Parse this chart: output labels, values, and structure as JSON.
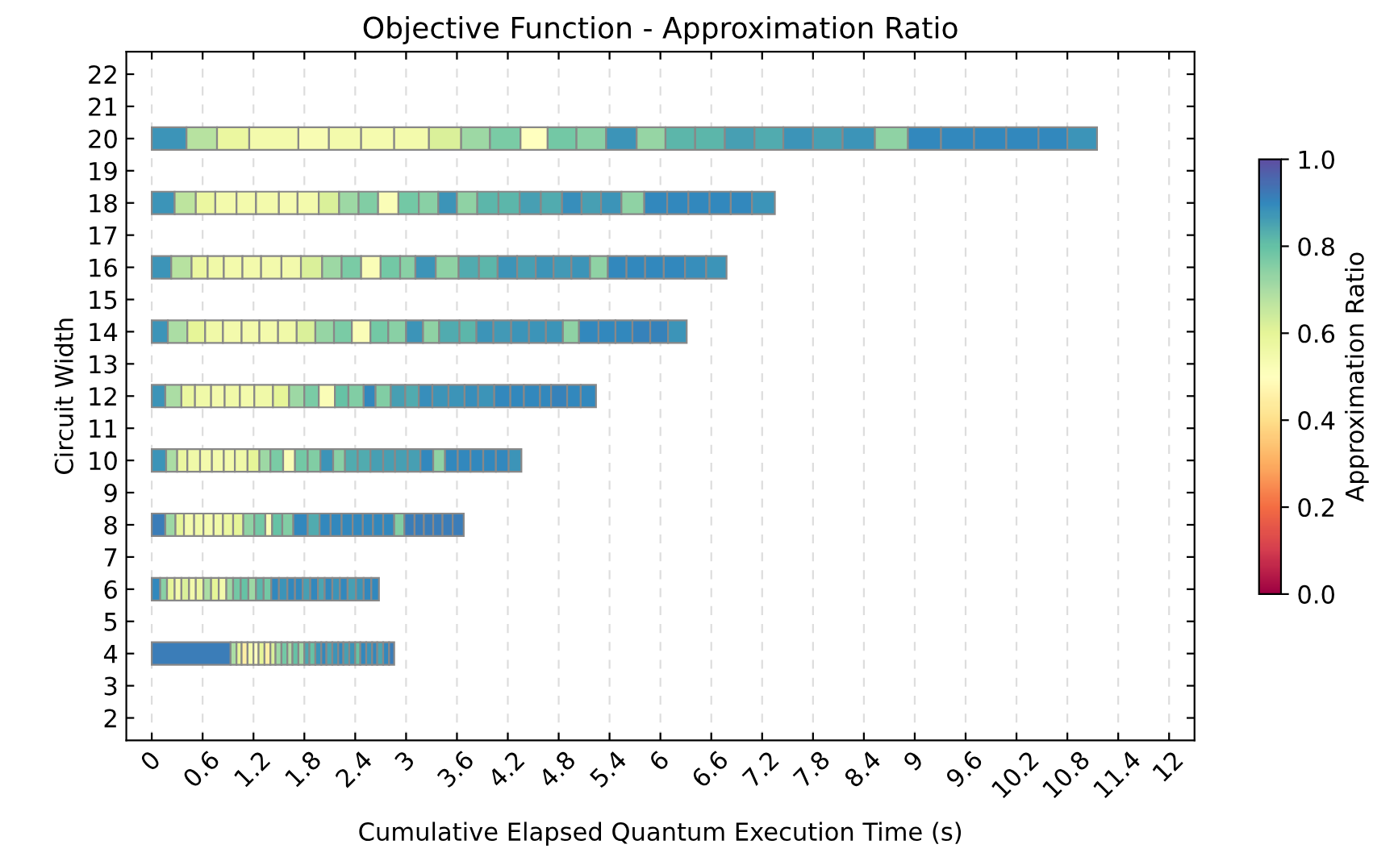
{
  "chart_data": {
    "type": "bar",
    "orientation": "horizontal",
    "stacked": true,
    "title": "Objective Function - Approximation Ratio",
    "xlabel": "Cumulative Elapsed Quantum Execution Time (s)",
    "ylabel": "Circuit Width",
    "clabel": "Approximation Ratio",
    "categories": [
      "22",
      "21",
      "20",
      "19",
      "18",
      "17",
      "16",
      "15",
      "14",
      "13",
      "12",
      "11",
      "10",
      "9",
      "8",
      "7",
      "6",
      "5",
      "4",
      "3",
      "2"
    ],
    "xlim": [
      -0.3,
      12.3
    ],
    "xticks": [
      0,
      0.6,
      1.2,
      1.8,
      2.4,
      3,
      3.6,
      4.2,
      4.8,
      5.4,
      6,
      6.6,
      7.2,
      7.8,
      8.4,
      9,
      9.6,
      10.2,
      10.8,
      11.4,
      12
    ],
    "clim": [
      0,
      1
    ],
    "cticks": [
      {
        "value": 0,
        "label": "0.0"
      },
      0.2,
      0.4,
      0.6,
      0.8,
      {
        "value": 1,
        "label": "1.0"
      }
    ],
    "grid": "x",
    "legend": false,
    "series": [
      {
        "values": [
          null,
          null,
          0.41,
          null,
          0.27,
          null,
          0.23,
          null,
          0.19,
          null,
          0.16,
          null,
          0.17,
          null,
          0.16,
          null,
          0.1,
          null,
          0.93,
          null,
          null
        ],
        "colors": [
          null,
          null,
          "#3c94b8",
          null,
          "#3c94b8",
          null,
          "#3c94b8",
          null,
          "#3c94b8",
          null,
          "#3c94b8",
          null,
          "#3c94b8",
          null,
          "#3b7db8",
          null,
          "#3288bd",
          null,
          "#3b7db8",
          null,
          null
        ]
      },
      {
        "values": [
          null,
          null,
          0.36,
          null,
          0.25,
          null,
          0.24,
          null,
          0.23,
          null,
          0.19,
          null,
          0.13,
          null,
          0.12,
          null,
          0.08,
          null,
          0.07,
          null,
          null
        ],
        "colors": [
          null,
          null,
          "#b7e2a0",
          null,
          "#bde49e",
          null,
          "#b7e2a0",
          null,
          "#abdda4",
          null,
          "#abdda4",
          null,
          "#abdda4",
          null,
          "#9dd8a4",
          null,
          "#89d0a5",
          null,
          "#abdda4",
          null,
          null
        ]
      },
      {
        "values": [
          null,
          null,
          0.38,
          null,
          0.23,
          null,
          0.19,
          null,
          0.21,
          null,
          0.16,
          null,
          0.12,
          null,
          0.1,
          null,
          0.09,
          null,
          0.06,
          null,
          null
        ],
        "colors": [
          null,
          null,
          "#ebf7a0",
          null,
          "#ebf7a0",
          null,
          "#ebf7a0",
          null,
          "#e6f598",
          null,
          "#ebf7a0",
          null,
          "#ebf7a0",
          null,
          "#e6f598",
          null,
          "#e6f598",
          null,
          "#e6f598",
          null,
          null
        ]
      },
      {
        "values": [
          null,
          null,
          0.58,
          null,
          0.25,
          null,
          0.19,
          null,
          0.21,
          null,
          0.19,
          null,
          0.15,
          null,
          0.12,
          null,
          0.08,
          null,
          0.07,
          null,
          null
        ],
        "colors": [
          null,
          null,
          "#f3faac",
          null,
          "#f3faac",
          null,
          "#f0f9a8",
          null,
          "#f0f9a8",
          null,
          "#f0f9a8",
          null,
          "#f0f9a8",
          null,
          "#f3faac",
          null,
          "#f3faac",
          null,
          "#feefa5",
          null,
          null
        ]
      },
      {
        "values": [
          null,
          null,
          0.36,
          null,
          0.23,
          null,
          0.22,
          null,
          0.22,
          null,
          0.16,
          null,
          0.14,
          null,
          0.11,
          null,
          0.09,
          null,
          0.07,
          null,
          null
        ],
        "colors": [
          null,
          null,
          "#f8fcb3",
          null,
          "#f3faac",
          null,
          "#f3faac",
          null,
          "#f3faac",
          null,
          "#f3faac",
          null,
          "#f3faac",
          null,
          "#f0f9a8",
          null,
          "#daf09a",
          null,
          "#f3faac",
          null,
          null
        ]
      },
      {
        "values": [
          null,
          null,
          0.38,
          null,
          0.27,
          null,
          0.22,
          null,
          0.21,
          null,
          0.18,
          null,
          0.14,
          null,
          0.12,
          null,
          0.08,
          null,
          0.06,
          null,
          null
        ],
        "colors": [
          null,
          null,
          "#f3faac",
          null,
          "#f3faac",
          null,
          "#f3faac",
          null,
          "#f3faac",
          null,
          "#f0f9a8",
          null,
          "#f3faac",
          null,
          "#f3faac",
          null,
          "#f3faac",
          null,
          "#ffffbf",
          null,
          null
        ]
      },
      {
        "values": [
          null,
          null,
          0.39,
          null,
          0.22,
          null,
          0.24,
          null,
          0.22,
          null,
          0.17,
          null,
          0.13,
          null,
          0.11,
          null,
          0.09,
          null,
          0.07,
          null,
          null
        ],
        "colors": [
          null,
          null,
          "#f5fbaf",
          null,
          "#f5fbaf",
          null,
          "#f3faac",
          null,
          "#f3faac",
          null,
          "#f3faac",
          null,
          "#f3faac",
          null,
          "#f0f9a8",
          null,
          "#ebf7a0",
          null,
          "#e6f598",
          null,
          null
        ]
      },
      {
        "values": [
          null,
          null,
          0.41,
          null,
          0.25,
          null,
          0.23,
          null,
          0.22,
          null,
          0.22,
          null,
          0.15,
          null,
          0.12,
          null,
          0.09,
          null,
          0.07,
          null,
          null
        ],
        "colors": [
          null,
          null,
          "#f3faac",
          null,
          "#f3faac",
          null,
          "#f3faac",
          null,
          "#f0f9a8",
          null,
          "#f0f9a8",
          null,
          "#f0f9a8",
          null,
          "#ebf7a0",
          null,
          "#abdda4",
          null,
          "#feefa5",
          null,
          null
        ]
      },
      {
        "values": [
          null,
          null,
          0.38,
          null,
          0.24,
          null,
          0.25,
          null,
          0.22,
          null,
          0.19,
          null,
          0.14,
          null,
          0.12,
          null,
          0.09,
          null,
          0.06,
          null,
          null
        ],
        "colors": [
          null,
          null,
          "#daf09a",
          null,
          "#daf09a",
          null,
          "#daf09a",
          null,
          "#daf09a",
          null,
          "#e6f598",
          null,
          "#e6f598",
          null,
          "#e6f598",
          null,
          "#e6f598",
          null,
          "#daf09a",
          null,
          null
        ]
      },
      {
        "values": [
          null,
          null,
          0.34,
          null,
          0.23,
          null,
          0.23,
          null,
          0.22,
          null,
          0.18,
          null,
          0.13,
          null,
          0.13,
          null,
          0.09,
          null,
          0.07,
          null,
          null
        ],
        "colors": [
          null,
          null,
          "#9dd8a4",
          null,
          "#9dd8a4",
          null,
          "#9dd8a4",
          null,
          "#96d5a4",
          null,
          "#9dd8a4",
          null,
          "#9dd8a4",
          null,
          "#8fd2a4",
          null,
          "#f3faac",
          null,
          "#9dd8a4",
          null,
          null
        ]
      },
      {
        "values": [
          null,
          null,
          0.36,
          null,
          0.23,
          null,
          0.23,
          null,
          0.21,
          null,
          0.17,
          null,
          0.15,
          null,
          0.13,
          null,
          0.08,
          null,
          0.07,
          null,
          null
        ],
        "colors": [
          null,
          null,
          "#7acba5",
          null,
          "#81cda4",
          null,
          "#7acba5",
          null,
          "#7acba5",
          null,
          "#7acba5",
          null,
          "#7acba5",
          null,
          "#73c8a5",
          null,
          "#9dd8a4",
          null,
          "#73c8a5",
          null,
          null
        ]
      },
      {
        "values": [
          null,
          null,
          0.32,
          null,
          0.24,
          null,
          0.23,
          null,
          0.22,
          null,
          0.19,
          null,
          0.14,
          null,
          0.08,
          null,
          0.09,
          null,
          0.06,
          null,
          null
        ],
        "colors": [
          null,
          null,
          "#ffffbf",
          null,
          "#fafdb7",
          null,
          "#fafdb7",
          null,
          "#fafdb7",
          null,
          "#fafdb7",
          null,
          "#fafdb7",
          null,
          "#fafdb7",
          null,
          "#73c8a5",
          null,
          "#abdda4",
          null,
          null
        ]
      },
      {
        "values": [
          null,
          null,
          0.34,
          null,
          0.24,
          null,
          0.23,
          null,
          0.21,
          null,
          0.16,
          null,
          0.15,
          null,
          0.12,
          null,
          0.09,
          null,
          0.07,
          null,
          null
        ],
        "colors": [
          null,
          null,
          "#73c8a5",
          null,
          "#73c8a5",
          null,
          "#73c8a5",
          null,
          "#73c8a5",
          null,
          "#66c2a5",
          null,
          "#73c8a5",
          null,
          "#66c2a5",
          null,
          "#66c2a5",
          null,
          "#66c2a5",
          null,
          null
        ]
      },
      {
        "values": [
          null,
          null,
          0.35,
          null,
          0.23,
          null,
          0.18,
          null,
          0.21,
          null,
          0.18,
          null,
          0.15,
          null,
          0.13,
          null,
          0.09,
          null,
          0.07,
          null,
          null
        ],
        "colors": [
          null,
          null,
          "#89d0a5",
          null,
          "#89d0a5",
          null,
          "#89d0a5",
          null,
          "#89d0a5",
          null,
          "#81cda4",
          null,
          "#81cda4",
          null,
          "#81cda4",
          null,
          "#9dd8a4",
          null,
          "#9dd8a4",
          null,
          null
        ]
      },
      {
        "values": [
          null,
          null,
          0.36,
          null,
          0.22,
          null,
          0.24,
          null,
          0.2,
          null,
          0.14,
          null,
          0.15,
          null,
          0.17,
          null,
          0.09,
          null,
          0.06,
          null,
          null
        ],
        "colors": [
          null,
          null,
          "#3c94b8",
          null,
          "#3c94b8",
          null,
          "#3c94b8",
          null,
          "#3c94b8",
          null,
          "#3288bd",
          null,
          "#3c94b8",
          null,
          "#3288bd",
          null,
          "#5cb6aa",
          null,
          "#4ca5b1",
          null,
          null
        ]
      },
      {
        "values": [
          null,
          null,
          0.34,
          null,
          0.24,
          null,
          0.27,
          null,
          0.19,
          null,
          0.18,
          null,
          0.14,
          null,
          0.14,
          null,
          0.09,
          null,
          0.07,
          null,
          null
        ],
        "colors": [
          null,
          null,
          "#96d5a4",
          null,
          "#8fd2a4",
          null,
          "#8fd2a4",
          null,
          "#8fd2a4",
          null,
          "#81cda4",
          null,
          "#89d0a5",
          null,
          "#51abaf",
          null,
          "#73c8a5",
          null,
          "#66c2a5",
          null,
          null
        ]
      },
      {
        "values": [
          null,
          null,
          0.35,
          null,
          0.25,
          null,
          0.24,
          null,
          0.24,
          null,
          0.17,
          null,
          0.15,
          null,
          0.13,
          null,
          0.09,
          null,
          0.07,
          null,
          null
        ],
        "colors": [
          null,
          null,
          "#5cb6aa",
          null,
          "#5cb6aa",
          null,
          "#51abaf",
          null,
          "#51abaf",
          null,
          "#479fb3",
          null,
          "#51abaf",
          null,
          "#3288bd",
          null,
          "#3288bd",
          null,
          "#3c94b8",
          null,
          null
        ]
      },
      {
        "values": [
          null,
          null,
          0.35,
          null,
          0.25,
          null,
          0.22,
          null,
          0.2,
          null,
          0.16,
          null,
          0.15,
          null,
          0.13,
          null,
          0.1,
          null,
          0.06,
          null,
          null
        ],
        "colors": [
          null,
          null,
          "#5cb6aa",
          null,
          "#5cb6aa",
          null,
          "#5cb6aa",
          null,
          "#5cb6aa",
          null,
          "#51abaf",
          null,
          "#51abaf",
          null,
          "#3288bd",
          null,
          "#3c94b8",
          null,
          "#3288bd",
          null,
          null
        ]
      },
      {
        "values": [
          null,
          null,
          0.35,
          null,
          0.25,
          null,
          0.23,
          null,
          0.2,
          null,
          0.16,
          null,
          0.15,
          null,
          0.13,
          null,
          0.09,
          null,
          0.07,
          null,
          null
        ],
        "colors": [
          null,
          null,
          "#479fb3",
          null,
          "#479fb3",
          null,
          "#3c94b8",
          null,
          "#3c94b8",
          null,
          "#378ebb",
          null,
          "#479fb3",
          null,
          "#3288bd",
          null,
          "#3288bd",
          null,
          "#4ca5b1",
          null,
          null
        ]
      },
      {
        "values": [
          null,
          null,
          0.34,
          null,
          0.25,
          null,
          0.22,
          null,
          0.21,
          null,
          0.19,
          null,
          0.14,
          null,
          0.12,
          null,
          0.09,
          null,
          0.07,
          null,
          null
        ],
        "colors": [
          null,
          null,
          "#51abaf",
          null,
          "#51abaf",
          null,
          "#479fb3",
          null,
          "#4299b6",
          null,
          "#3c94b8",
          null,
          "#479fb3",
          null,
          "#3288bd",
          null,
          "#3288bd",
          null,
          "#3c94b8",
          null,
          null
        ]
      },
      {
        "values": [
          null,
          null,
          0.35,
          null,
          0.23,
          null,
          0.21,
          null,
          0.21,
          null,
          0.19,
          null,
          0.15,
          null,
          0.12,
          null,
          0.09,
          null,
          0.06,
          null,
          null
        ],
        "colors": [
          null,
          null,
          "#3c94b8",
          null,
          "#378ebb",
          null,
          "#3c94b8",
          null,
          "#3c94b8",
          null,
          "#3c94b8",
          null,
          "#479fb3",
          null,
          "#3288bd",
          null,
          "#479fb3",
          null,
          "#3288bd",
          null,
          null
        ]
      },
      {
        "values": [
          null,
          null,
          0.35,
          null,
          0.23,
          null,
          0.21,
          null,
          0.2,
          null,
          0.16,
          null,
          0.15,
          null,
          0.12,
          null,
          0.09,
          null,
          0.07,
          null,
          null
        ],
        "colors": [
          null,
          null,
          "#479fb3",
          null,
          "#479fb3",
          null,
          "#4299b6",
          null,
          "#3c94b8",
          null,
          "#378ebb",
          null,
          "#479fb3",
          null,
          "#3288bd",
          null,
          "#3288bd",
          null,
          "#479fb3",
          null,
          null
        ]
      },
      {
        "values": [
          null,
          null,
          0.38,
          null,
          0.24,
          null,
          0.22,
          null,
          0.2,
          null,
          0.19,
          null,
          0.15,
          null,
          0.13,
          null,
          0.08,
          null,
          0.07,
          null,
          null
        ],
        "colors": [
          null,
          null,
          "#3c94b8",
          null,
          "#3c94b8",
          null,
          "#3c94b8",
          null,
          "#3c94b8",
          null,
          "#3c94b8",
          null,
          "#3288bd",
          null,
          "#3288bd",
          null,
          "#4ca5b1",
          null,
          "#3c94b8",
          null,
          null
        ]
      },
      {
        "values": [
          null,
          null,
          0.39,
          null,
          0.27,
          null,
          0.21,
          null,
          0.19,
          null,
          0.19,
          null,
          0.14,
          null,
          0.12,
          null,
          0.09,
          null,
          0.06,
          null,
          null
        ],
        "colors": [
          null,
          null,
          "#8fd2a4",
          null,
          "#8fd2a4",
          null,
          "#8fd2a4",
          null,
          "#8fd2a4",
          null,
          "#3288bd",
          null,
          "#8fd2a4",
          null,
          "#81cda4",
          null,
          "#3288bd",
          null,
          "#66c2a5",
          null,
          null
        ]
      },
      {
        "values": [
          null,
          null,
          0.39,
          null,
          0.27,
          null,
          0.22,
          null,
          0.23,
          null,
          0.16,
          null,
          0.15,
          null,
          0.12,
          null,
          0.09,
          null,
          0.07,
          null,
          null
        ],
        "colors": [
          null,
          null,
          "#3288bd",
          null,
          "#3288bd",
          null,
          "#3288bd",
          null,
          "#3288bd",
          null,
          "#3288bd",
          null,
          "#3288bd",
          null,
          "#3b7db8",
          null,
          "#3c94b8",
          null,
          "#3288bd",
          null,
          null
        ]
      },
      {
        "values": [
          null,
          null,
          0.39,
          null,
          0.25,
          null,
          0.22,
          null,
          0.2,
          null,
          0.19,
          null,
          0.15,
          null,
          0.11,
          null,
          0.09,
          null,
          0.07,
          null,
          null
        ],
        "colors": [
          null,
          null,
          "#3288bd",
          null,
          "#3288bd",
          null,
          "#3288bd",
          null,
          "#3288bd",
          null,
          "#3288bd",
          null,
          "#3288bd",
          null,
          "#3b7db8",
          null,
          "#3288bd",
          null,
          "#3c94b8",
          null,
          null
        ]
      },
      {
        "values": [
          null,
          null,
          0.38,
          null,
          0.25,
          null,
          0.22,
          null,
          0.2,
          null,
          0.13,
          null,
          0.15,
          null,
          0.11,
          null,
          0.1,
          null,
          0.06,
          null,
          null
        ],
        "colors": [
          null,
          null,
          "#3288bd",
          null,
          "#3288bd",
          null,
          "#3288bd",
          null,
          "#3288bd",
          null,
          "#3288bd",
          null,
          "#3288bd",
          null,
          "#3b7db8",
          null,
          "#479fb3",
          null,
          "#3288bd",
          null,
          null
        ]
      },
      {
        "values": [
          null,
          null,
          0.38,
          null,
          0.25,
          null,
          0.25,
          null,
          0.21,
          null,
          0.19,
          null,
          0.15,
          null,
          0.11,
          null,
          0.09,
          null,
          0.07,
          null,
          null
        ],
        "colors": [
          null,
          null,
          "#3288bd",
          null,
          "#3288bd",
          null,
          "#3288bd",
          null,
          "#3682ba",
          null,
          "#3682ba",
          null,
          "#3288bd",
          null,
          "#3b7db8",
          null,
          "#3c94b8",
          null,
          "#4ca5b1",
          null,
          null
        ]
      },
      {
        "values": [
          null,
          null,
          0.34,
          null,
          0.25,
          null,
          0.25,
          null,
          0.21,
          null,
          0.16,
          null,
          0.15,
          null,
          0.12,
          null,
          0.09,
          null,
          0.07,
          null,
          null
        ],
        "colors": [
          null,
          null,
          "#3288bd",
          null,
          "#3288bd",
          null,
          "#378ebb",
          null,
          "#3682ba",
          null,
          "#3288bd",
          null,
          "#3288bd",
          null,
          "#3b7db8",
          null,
          "#3288bd",
          null,
          "#3288bd",
          null,
          null
        ]
      },
      {
        "values": [
          null,
          null,
          0.35,
          null,
          0.27,
          null,
          0.24,
          null,
          0.22,
          null,
          0.18,
          null,
          0.15,
          null,
          0.13,
          null,
          0.09,
          null,
          0.06,
          null,
          null
        ],
        "colors": [
          null,
          null,
          "#3c94b8",
          null,
          "#3c94b8",
          null,
          "#3c94b8",
          null,
          "#3c94b8",
          null,
          "#3288bd",
          null,
          "#3c94b8",
          null,
          "#3b7db8",
          null,
          "#3288bd",
          null,
          "#3b7db8",
          null,
          null
        ]
      }
    ]
  }
}
